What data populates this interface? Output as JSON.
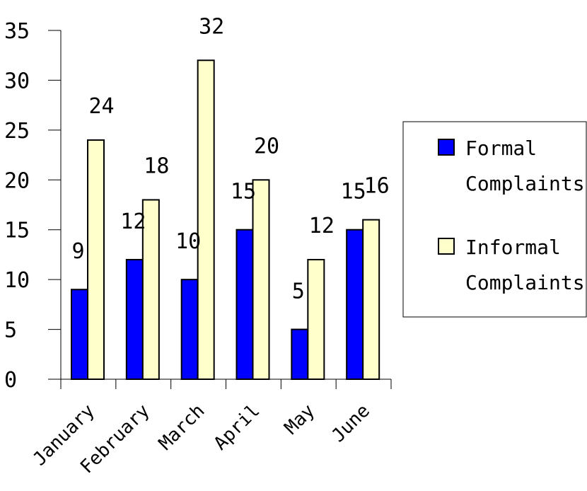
{
  "chart_data": {
    "type": "bar",
    "categories": [
      "January",
      "February",
      "March",
      "April",
      "May",
      "June"
    ],
    "series": [
      {
        "name": "Formal Complaints",
        "values": [
          9,
          12,
          10,
          15,
          5,
          15
        ],
        "color": "#0000ff"
      },
      {
        "name": "Informal Complaints",
        "values": [
          24,
          18,
          32,
          20,
          12,
          16
        ],
        "color": "#ffffcc"
      }
    ],
    "ylim": [
      0,
      35
    ],
    "yticks": [
      0,
      5,
      10,
      15,
      20,
      25,
      30,
      35
    ],
    "legend_position": "right",
    "grid": false,
    "data_labels": true
  }
}
